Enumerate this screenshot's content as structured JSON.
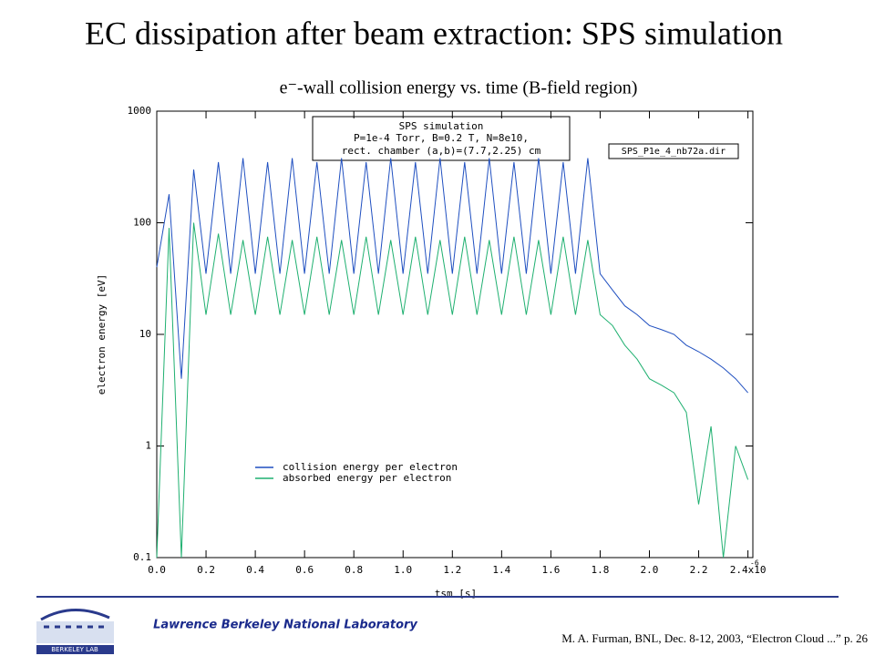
{
  "header": {
    "title": "EC dissipation after beam extraction: SPS simulation"
  },
  "chart_data": {
    "type": "line",
    "title": "e⁻-wall collision energy vs. time (B-field region)",
    "xlabel": "tsm [s]",
    "ylabel": "electron energy [eV]",
    "annotation": [
      "SPS simulation",
      "P=1e-4 Torr, B=0.2 T, N=8e10,",
      "rect. chamber (a,b)=(7.7,2.25) cm"
    ],
    "file_label": "SPS_P1e_4_nb72a.dir",
    "x_tick_exponent": "-6",
    "x": [
      0,
      0.05,
      0.1,
      0.15,
      0.2,
      0.25,
      0.3,
      0.35,
      0.4,
      0.45,
      0.5,
      0.55,
      0.6,
      0.65,
      0.7,
      0.75,
      0.8,
      0.85,
      0.9,
      0.95,
      1.0,
      1.05,
      1.1,
      1.15,
      1.2,
      1.25,
      1.3,
      1.35,
      1.4,
      1.45,
      1.5,
      1.55,
      1.6,
      1.65,
      1.7,
      1.75,
      1.8,
      1.85,
      1.9,
      1.95,
      2.0,
      2.05,
      2.1,
      2.15,
      2.2,
      2.25,
      2.3,
      2.35,
      2.4
    ],
    "series": [
      {
        "name": "collision energy per electron",
        "color": "#1f4fc0",
        "values": [
          40,
          180,
          4,
          300,
          35,
          350,
          35,
          380,
          35,
          350,
          35,
          380,
          35,
          350,
          35,
          380,
          35,
          350,
          35,
          380,
          35,
          350,
          35,
          380,
          35,
          350,
          35,
          380,
          35,
          350,
          35,
          380,
          35,
          350,
          35,
          380,
          35,
          25,
          18,
          15,
          12,
          11,
          10,
          8,
          7,
          6,
          5,
          4,
          3
        ]
      },
      {
        "name": "absorbed energy per electron",
        "color": "#1fb070",
        "values": [
          0.1,
          90,
          0.1,
          100,
          15,
          80,
          15,
          70,
          15,
          75,
          15,
          70,
          15,
          75,
          15,
          70,
          15,
          75,
          15,
          70,
          15,
          75,
          15,
          70,
          15,
          75,
          15,
          70,
          15,
          75,
          15,
          70,
          15,
          75,
          15,
          70,
          15,
          12,
          8,
          6,
          4,
          3.5,
          3,
          2,
          0.3,
          1.5,
          0.1,
          1,
          0.5
        ]
      }
    ],
    "xlim": [
      0,
      2.42
    ],
    "xticks": [
      {
        "value": 0,
        "label": "0.0"
      },
      0.2,
      0.4,
      0.6,
      0.8,
      {
        "value": 1,
        "label": "1.0"
      },
      1.2,
      1.4,
      1.6,
      1.8,
      {
        "value": 2,
        "label": "2.0"
      },
      2.2,
      {
        "value": 2.4,
        "label": "2.4x10"
      }
    ],
    "ylim": [
      0.1,
      1000
    ],
    "yticks": [
      0.1,
      1,
      10,
      100,
      1000
    ],
    "log_y": true,
    "legend": "lower left"
  },
  "footer": {
    "institution": "Lawrence Berkeley National Laboratory",
    "logo": "BERKELEY LAB",
    "citation": "M. A. Furman, BNL, Dec. 8-12, 2003, “Electron Cloud ...”  p. 26"
  }
}
